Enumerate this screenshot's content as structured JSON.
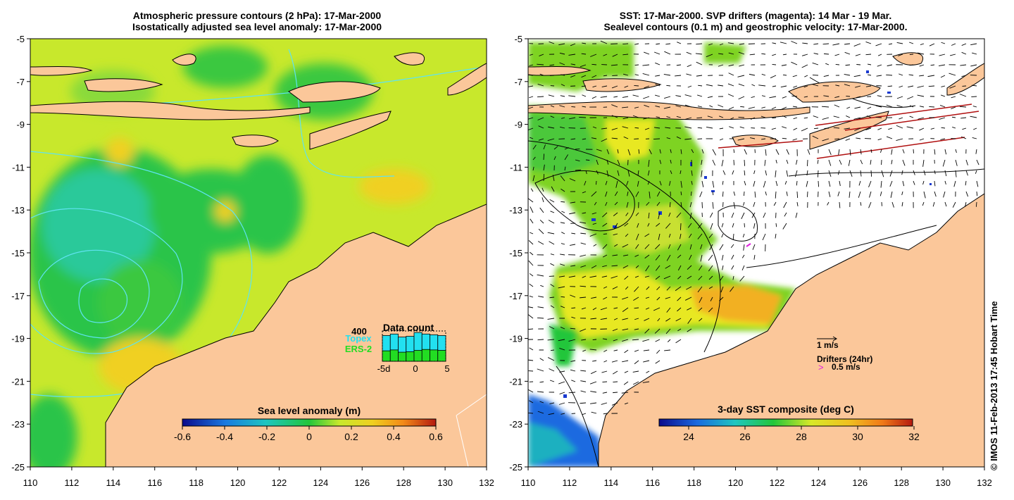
{
  "left_panel": {
    "title_line1": "Atmospheric pressure contours (2 hPa): 17-Mar-2000",
    "title_line2": "Isostatically adjusted sea level anomaly: 17-Mar-2000",
    "colorbar": {
      "label": "Sea level anomaly (m)",
      "ticks": [
        "-0.6",
        "-0.4",
        "-0.2",
        "0",
        "0.2",
        "0.4",
        "0.6"
      ]
    },
    "data_count": {
      "title": "Data count",
      "max_label": "400",
      "series": [
        {
          "name": "Topex",
          "color": "#22e0f0"
        },
        {
          "name": "ERS-2",
          "color": "#22dd22"
        }
      ],
      "x_ticks": [
        "-5d",
        "0",
        "5"
      ],
      "topex_values": [
        340,
        360,
        320,
        330,
        380,
        360,
        350,
        340
      ],
      "ers_values": [
        230,
        250,
        200,
        210,
        240,
        260,
        250,
        240
      ]
    }
  },
  "right_panel": {
    "title_line1": "SST: 17-Mar-2000. SVP drifters (magenta): 14 Mar - 19 Mar.",
    "title_line2": "Sealevel contours (0.1 m) and geostrophic velocity: 17-Mar-2000.",
    "velocity_scale_label": "1 m/s",
    "drifters_label": "Drifters (24hr)",
    "drifter_marker": ">",
    "drifter_speed_label": "0.5 m/s",
    "colorbar": {
      "label": "3-day SST composite (deg C)",
      "ticks": [
        "24",
        "26",
        "28",
        "30",
        "32"
      ]
    }
  },
  "axes": {
    "lat_ticks": [
      "-5",
      "-7",
      "-9",
      "-11",
      "-13",
      "-15",
      "-17",
      "-19",
      "-21",
      "-23",
      "-25"
    ],
    "lon_ticks": [
      "110",
      "112",
      "114",
      "116",
      "118",
      "120",
      "122",
      "124",
      "126",
      "128",
      "130",
      "132"
    ]
  },
  "credit": "© IMOS 11-Feb-2013 17:45 Hobart Time",
  "colors": {
    "land": "#fbc79a",
    "anomaly_base": "#c8e82c",
    "anomaly_low": "#1fc36a",
    "anomaly_lower": "#2cc99a",
    "anomaly_high": "#f0d020",
    "sst_green": "#7ed321",
    "sst_yellow": "#e8e820",
    "sst_orange": "#f2b020",
    "contour_cyan": "#5fe3f0",
    "drifter_red": "#b01010"
  }
}
